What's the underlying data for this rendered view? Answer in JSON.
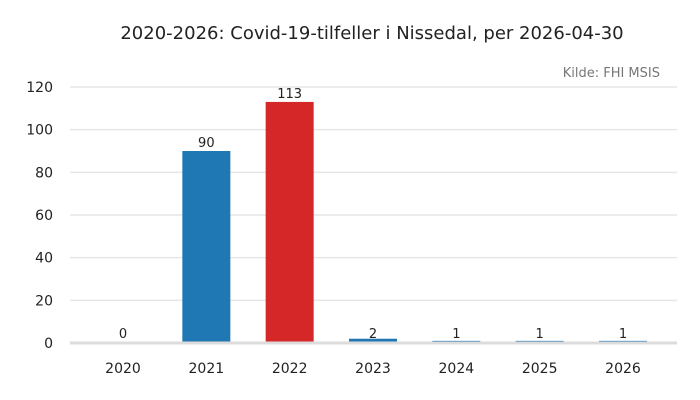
{
  "colors": {
    "default_bar": "#1f77b4",
    "highlight_bar": "#d62728",
    "grid": "#e6e6e6",
    "text": "#222222",
    "source_text": "#777777"
  },
  "chart_data": {
    "type": "bar",
    "title": "2020-2026: Covid-19-tilfeller i Nissedal, per 2026-04-30",
    "source": "Kilde: FHI MSIS",
    "xlabel": "",
    "ylabel": "",
    "categories": [
      "2020",
      "2021",
      "2022",
      "2023",
      "2024",
      "2025",
      "2026"
    ],
    "values": [
      0,
      90,
      113,
      2,
      1,
      1,
      1
    ],
    "value_labels": [
      "0",
      "90",
      "113",
      "2",
      "1",
      "1",
      "1"
    ],
    "highlight_category": "2022",
    "ylim": [
      0,
      120
    ],
    "yticks": [
      0,
      20,
      40,
      60,
      80,
      100,
      120
    ],
    "ytick_labels": [
      "0",
      "20",
      "40",
      "60",
      "80",
      "100",
      "120"
    ],
    "grid": true,
    "legend": "none"
  }
}
